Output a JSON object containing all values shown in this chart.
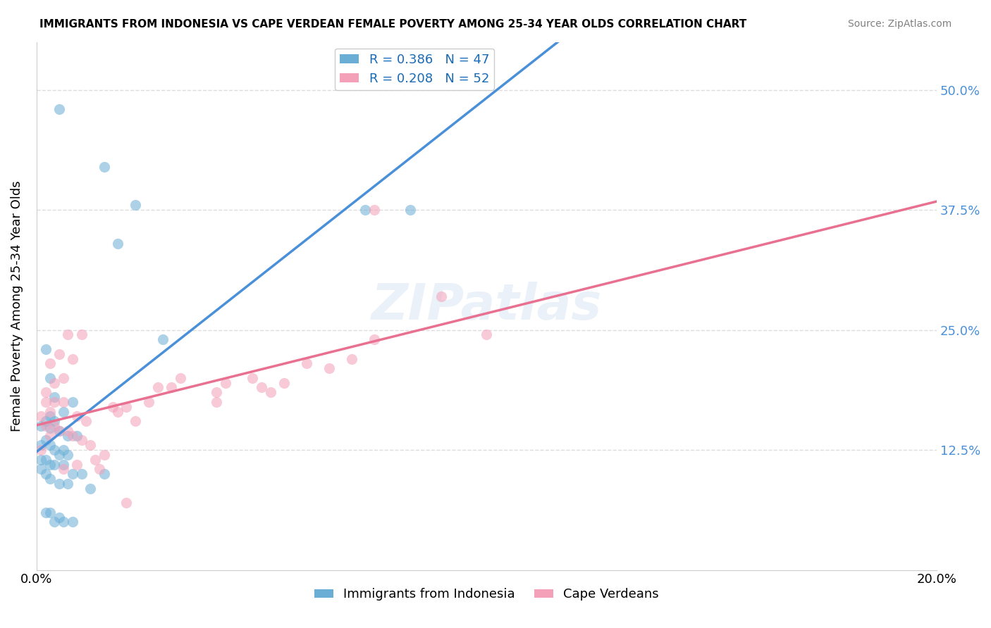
{
  "title": "IMMIGRANTS FROM INDONESIA VS CAPE VERDEAN FEMALE POVERTY AMONG 25-34 YEAR OLDS CORRELATION CHART",
  "source": "Source: ZipAtlas.com",
  "ylabel": "Female Poverty Among 25-34 Year Olds",
  "xlabel_bottom": "",
  "xlim": [
    0.0,
    0.2
  ],
  "ylim": [
    0.0,
    0.55
  ],
  "yticks": [
    0.0,
    0.125,
    0.25,
    0.375,
    0.5
  ],
  "ytick_labels": [
    "",
    "12.5%",
    "25.0%",
    "37.5%",
    "50.0%"
  ],
  "xticks": [
    0.0,
    0.04,
    0.08,
    0.12,
    0.16,
    0.2
  ],
  "xtick_labels": [
    "0.0%",
    "",
    "",
    "",
    "",
    "20.0%"
  ],
  "legend_entries": [
    {
      "label": "R = 0.386   N = 47",
      "color": "#a8c4e0"
    },
    {
      "label": "R = 0.208   N = 52",
      "color": "#f4b8c8"
    }
  ],
  "blue_color": "#6aaed6",
  "pink_color": "#f4a0b8",
  "trend_blue": "#4a90d9",
  "trend_pink": "#e87090",
  "trend_dashed": "#b0b0b0",
  "watermark": "ZIPatlas",
  "indonesia_R": 0.386,
  "indonesia_N": 47,
  "capeverde_R": 0.208,
  "capeverde_N": 52,
  "indonesia_points": [
    [
      0.005,
      0.48
    ],
    [
      0.015,
      0.42
    ],
    [
      0.018,
      0.34
    ],
    [
      0.022,
      0.38
    ],
    [
      0.028,
      0.24
    ],
    [
      0.002,
      0.23
    ],
    [
      0.003,
      0.2
    ],
    [
      0.004,
      0.18
    ],
    [
      0.008,
      0.175
    ],
    [
      0.006,
      0.165
    ],
    [
      0.003,
      0.16
    ],
    [
      0.004,
      0.155
    ],
    [
      0.002,
      0.155
    ],
    [
      0.001,
      0.15
    ],
    [
      0.003,
      0.148
    ],
    [
      0.005,
      0.145
    ],
    [
      0.007,
      0.14
    ],
    [
      0.009,
      0.14
    ],
    [
      0.002,
      0.135
    ],
    [
      0.001,
      0.13
    ],
    [
      0.003,
      0.13
    ],
    [
      0.004,
      0.125
    ],
    [
      0.006,
      0.125
    ],
    [
      0.005,
      0.12
    ],
    [
      0.007,
      0.12
    ],
    [
      0.001,
      0.115
    ],
    [
      0.002,
      0.115
    ],
    [
      0.003,
      0.11
    ],
    [
      0.004,
      0.11
    ],
    [
      0.006,
      0.11
    ],
    [
      0.001,
      0.105
    ],
    [
      0.002,
      0.1
    ],
    [
      0.008,
      0.1
    ],
    [
      0.01,
      0.1
    ],
    [
      0.015,
      0.1
    ],
    [
      0.003,
      0.095
    ],
    [
      0.005,
      0.09
    ],
    [
      0.007,
      0.09
    ],
    [
      0.012,
      0.085
    ],
    [
      0.002,
      0.06
    ],
    [
      0.003,
      0.06
    ],
    [
      0.005,
      0.055
    ],
    [
      0.004,
      0.05
    ],
    [
      0.006,
      0.05
    ],
    [
      0.008,
      0.05
    ],
    [
      0.073,
      0.375
    ],
    [
      0.083,
      0.375
    ]
  ],
  "capeverde_points": [
    [
      0.002,
      0.185
    ],
    [
      0.004,
      0.195
    ],
    [
      0.006,
      0.2
    ],
    [
      0.003,
      0.215
    ],
    [
      0.008,
      0.22
    ],
    [
      0.005,
      0.225
    ],
    [
      0.007,
      0.245
    ],
    [
      0.01,
      0.245
    ],
    [
      0.002,
      0.175
    ],
    [
      0.004,
      0.175
    ],
    [
      0.006,
      0.175
    ],
    [
      0.003,
      0.165
    ],
    [
      0.001,
      0.16
    ],
    [
      0.009,
      0.16
    ],
    [
      0.011,
      0.155
    ],
    [
      0.002,
      0.15
    ],
    [
      0.004,
      0.15
    ],
    [
      0.005,
      0.145
    ],
    [
      0.007,
      0.145
    ],
    [
      0.003,
      0.14
    ],
    [
      0.008,
      0.14
    ],
    [
      0.01,
      0.135
    ],
    [
      0.012,
      0.13
    ],
    [
      0.001,
      0.125
    ],
    [
      0.015,
      0.12
    ],
    [
      0.013,
      0.115
    ],
    [
      0.009,
      0.11
    ],
    [
      0.006,
      0.105
    ],
    [
      0.014,
      0.105
    ],
    [
      0.017,
      0.17
    ],
    [
      0.018,
      0.165
    ],
    [
      0.02,
      0.17
    ],
    [
      0.022,
      0.155
    ],
    [
      0.025,
      0.175
    ],
    [
      0.027,
      0.19
    ],
    [
      0.03,
      0.19
    ],
    [
      0.032,
      0.2
    ],
    [
      0.04,
      0.175
    ],
    [
      0.04,
      0.185
    ],
    [
      0.042,
      0.195
    ],
    [
      0.048,
      0.2
    ],
    [
      0.05,
      0.19
    ],
    [
      0.052,
      0.185
    ],
    [
      0.055,
      0.195
    ],
    [
      0.06,
      0.215
    ],
    [
      0.065,
      0.21
    ],
    [
      0.07,
      0.22
    ],
    [
      0.075,
      0.24
    ],
    [
      0.02,
      0.07
    ],
    [
      0.075,
      0.375
    ],
    [
      0.09,
      0.285
    ],
    [
      0.1,
      0.245
    ]
  ]
}
